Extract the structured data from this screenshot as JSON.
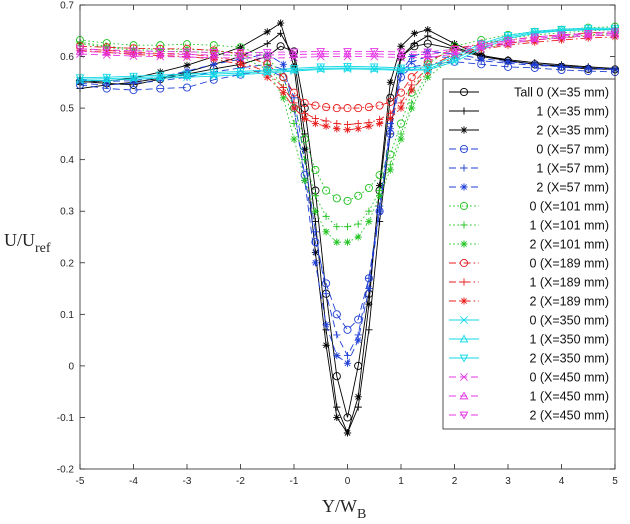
{
  "chart_data": {
    "type": "line",
    "title": "",
    "xlabel": "Y/W",
    "xlabel_sub": "B",
    "ylabel": "U/U",
    "ylabel_sub": "ref",
    "xlim": [
      -5,
      5
    ],
    "ylim": [
      -0.2,
      0.7
    ],
    "xticks": [
      "-5",
      "-4",
      "-3",
      "-2",
      "-1",
      "0",
      "1",
      "2",
      "3",
      "4",
      "5"
    ],
    "yticks": [
      "-0.2",
      "-0.1",
      "0",
      "0.1",
      "0.2",
      "0.3",
      "0.4",
      "0.5",
      "0.6",
      "0.7"
    ],
    "legend_position": "right",
    "series": [
      {
        "name": "Tall 0 (X=35 mm)",
        "color": "#000000",
        "dash": "solid",
        "marker": "circle",
        "x": [
          -5,
          -4.5,
          -4,
          -3.5,
          -3,
          -2.5,
          -2,
          -1.5,
          -1.25,
          -1,
          -0.8,
          -0.6,
          -0.4,
          -0.2,
          0,
          0.2,
          0.4,
          0.6,
          0.8,
          1,
          1.25,
          1.5,
          2,
          2.5,
          3,
          3.5,
          4,
          4.5,
          5
        ],
        "y": [
          0.552,
          0.548,
          0.545,
          0.556,
          0.566,
          0.576,
          0.585,
          0.6,
          0.62,
          0.61,
          0.5,
          0.34,
          0.14,
          -0.02,
          -0.1,
          0.0,
          0.14,
          0.34,
          0.52,
          0.6,
          0.62,
          0.625,
          0.615,
          0.6,
          0.592,
          0.585,
          0.58,
          0.576,
          0.575
        ]
      },
      {
        "name": "1 (X=35 mm)",
        "color": "#000000",
        "dash": "solid",
        "marker": "plus",
        "x": [
          -5,
          -4.5,
          -4,
          -3.5,
          -3,
          -2.5,
          -2,
          -1.5,
          -1.25,
          -1,
          -0.8,
          -0.6,
          -0.4,
          -0.2,
          0,
          0.2,
          0.4,
          0.6,
          0.8,
          1,
          1.25,
          1.5,
          2,
          2.5,
          3,
          3.5,
          4,
          4.5,
          5
        ],
        "y": [
          0.538,
          0.545,
          0.55,
          0.558,
          0.57,
          0.585,
          0.6,
          0.625,
          0.645,
          0.6,
          0.45,
          0.28,
          0.07,
          -0.08,
          -0.13,
          -0.08,
          0.07,
          0.28,
          0.45,
          0.6,
          0.625,
          0.64,
          0.618,
          0.602,
          0.594,
          0.588,
          0.584,
          0.58,
          0.577
        ]
      },
      {
        "name": "2 (X=35 mm)",
        "color": "#000000",
        "dash": "solid",
        "marker": "star",
        "x": [
          -5,
          -4.5,
          -4,
          -3.5,
          -3,
          -2.5,
          -2,
          -1.5,
          -1.25,
          -1,
          -0.8,
          -0.6,
          -0.4,
          -0.2,
          0,
          0.2,
          0.4,
          0.6,
          0.8,
          1,
          1.25,
          1.5,
          2,
          2.5,
          3,
          3.5,
          4,
          4.5,
          5
        ],
        "y": [
          0.55,
          0.553,
          0.558,
          0.57,
          0.583,
          0.6,
          0.618,
          0.648,
          0.665,
          0.58,
          0.42,
          0.22,
          0.04,
          -0.1,
          -0.13,
          -0.06,
          0.12,
          0.35,
          0.55,
          0.62,
          0.645,
          0.652,
          0.625,
          0.603,
          0.592,
          0.585,
          0.582,
          0.578,
          0.575
        ]
      },
      {
        "name": "0 (X=57 mm)",
        "color": "#1f3fd6",
        "dash": "dash",
        "marker": "circle",
        "x": [
          -5,
          -4.5,
          -4,
          -3.5,
          -3,
          -2.5,
          -2,
          -1.5,
          -1.2,
          -1,
          -0.8,
          -0.6,
          -0.4,
          -0.2,
          0,
          0.2,
          0.4,
          0.6,
          0.8,
          1,
          1.2,
          1.5,
          2,
          2.5,
          3,
          3.5,
          4,
          4.5,
          5
        ],
        "y": [
          0.545,
          0.538,
          0.535,
          0.538,
          0.54,
          0.555,
          0.565,
          0.575,
          0.56,
          0.5,
          0.37,
          0.24,
          0.16,
          0.1,
          0.07,
          0.09,
          0.17,
          0.3,
          0.45,
          0.56,
          0.58,
          0.585,
          0.59,
          0.585,
          0.58,
          0.578,
          0.574,
          0.572,
          0.57
        ]
      },
      {
        "name": "1 (X=57 mm)",
        "color": "#1f3fd6",
        "dash": "dash",
        "marker": "plus",
        "x": [
          -5,
          -4.5,
          -4,
          -3.5,
          -3,
          -2.5,
          -2,
          -1.5,
          -1.2,
          -1,
          -0.8,
          -0.6,
          -0.4,
          -0.2,
          0,
          0.2,
          0.4,
          0.6,
          0.8,
          1,
          1.2,
          1.5,
          2,
          2.5,
          3,
          3.5,
          4,
          4.5,
          5
        ],
        "y": [
          0.548,
          0.545,
          0.548,
          0.553,
          0.56,
          0.57,
          0.578,
          0.585,
          0.575,
          0.52,
          0.4,
          0.26,
          0.14,
          0.06,
          0.02,
          0.06,
          0.17,
          0.31,
          0.47,
          0.57,
          0.59,
          0.6,
          0.598,
          0.592,
          0.587,
          0.583,
          0.58,
          0.577,
          0.575
        ]
      },
      {
        "name": "2 (X=57 mm)",
        "color": "#1f3fd6",
        "dash": "dash",
        "marker": "star",
        "x": [
          -5,
          -4.5,
          -4,
          -3.5,
          -3,
          -2.5,
          -2,
          -1.5,
          -1.2,
          -1,
          -0.8,
          -0.6,
          -0.4,
          -0.2,
          0,
          0.2,
          0.4,
          0.6,
          0.8,
          1,
          1.2,
          1.5,
          2,
          2.5,
          3,
          3.5,
          4,
          4.5,
          5
        ],
        "y": [
          0.555,
          0.552,
          0.553,
          0.56,
          0.572,
          0.585,
          0.595,
          0.605,
          0.585,
          0.5,
          0.36,
          0.2,
          0.08,
          0.02,
          0.005,
          0.05,
          0.15,
          0.3,
          0.46,
          0.57,
          0.6,
          0.61,
          0.605,
          0.596,
          0.59,
          0.585,
          0.581,
          0.578,
          0.576
        ]
      },
      {
        "name": "0 (X=101 mm)",
        "color": "#22c322",
        "dash": "dot",
        "marker": "circle",
        "x": [
          -5,
          -4.5,
          -4,
          -3.5,
          -3,
          -2.5,
          -2,
          -1.5,
          -1.2,
          -1,
          -0.8,
          -0.6,
          -0.4,
          -0.2,
          0,
          0.2,
          0.4,
          0.6,
          0.8,
          1,
          1.2,
          1.5,
          2,
          2.5,
          3,
          3.5,
          4,
          4.5,
          5
        ],
        "y": [
          0.632,
          0.626,
          0.622,
          0.622,
          0.624,
          0.622,
          0.618,
          0.6,
          0.56,
          0.5,
          0.44,
          0.38,
          0.34,
          0.325,
          0.32,
          0.33,
          0.345,
          0.37,
          0.41,
          0.47,
          0.53,
          0.585,
          0.62,
          0.632,
          0.642,
          0.648,
          0.652,
          0.656,
          0.658
        ]
      },
      {
        "name": "1 (X=101 mm)",
        "color": "#22c322",
        "dash": "dot",
        "marker": "plus",
        "x": [
          -5,
          -4.5,
          -4,
          -3.5,
          -3,
          -2.5,
          -2,
          -1.5,
          -1.2,
          -1,
          -0.8,
          -0.6,
          -0.4,
          -0.2,
          0,
          0.2,
          0.4,
          0.6,
          0.8,
          1,
          1.2,
          1.5,
          2,
          2.5,
          3,
          3.5,
          4,
          4.5,
          5
        ],
        "y": [
          0.628,
          0.62,
          0.615,
          0.614,
          0.614,
          0.612,
          0.606,
          0.585,
          0.54,
          0.47,
          0.4,
          0.33,
          0.29,
          0.27,
          0.27,
          0.275,
          0.3,
          0.34,
          0.39,
          0.45,
          0.51,
          0.57,
          0.61,
          0.625,
          0.635,
          0.642,
          0.646,
          0.65,
          0.652
        ]
      },
      {
        "name": "2 (X=101 mm)",
        "color": "#22c322",
        "dash": "dot",
        "marker": "star",
        "x": [
          -5,
          -4.5,
          -4,
          -3.5,
          -3,
          -2.5,
          -2,
          -1.5,
          -1.2,
          -1,
          -0.8,
          -0.6,
          -0.4,
          -0.2,
          0,
          0.2,
          0.4,
          0.6,
          0.8,
          1,
          1.2,
          1.5,
          2,
          2.5,
          3,
          3.5,
          4,
          4.5,
          5
        ],
        "y": [
          0.625,
          0.618,
          0.612,
          0.61,
          0.61,
          0.607,
          0.6,
          0.575,
          0.52,
          0.44,
          0.36,
          0.3,
          0.26,
          0.24,
          0.24,
          0.25,
          0.28,
          0.33,
          0.38,
          0.44,
          0.5,
          0.56,
          0.6,
          0.615,
          0.625,
          0.632,
          0.638,
          0.642,
          0.645
        ]
      },
      {
        "name": "0 (X=189 mm)",
        "color": "#e81c1c",
        "dash": "dashdot",
        "marker": "circle",
        "x": [
          -5,
          -4.5,
          -4,
          -3.5,
          -3,
          -2.5,
          -2,
          -1.5,
          -1.2,
          -1,
          -0.8,
          -0.6,
          -0.4,
          -0.2,
          0,
          0.2,
          0.4,
          0.6,
          0.8,
          1,
          1.2,
          1.5,
          2,
          2.5,
          3,
          3.5,
          4,
          4.5,
          5
        ],
        "y": [
          0.62,
          0.618,
          0.616,
          0.615,
          0.615,
          0.612,
          0.605,
          0.585,
          0.56,
          0.53,
          0.51,
          0.505,
          0.502,
          0.5,
          0.5,
          0.5,
          0.502,
          0.505,
          0.512,
          0.53,
          0.56,
          0.59,
          0.615,
          0.625,
          0.632,
          0.638,
          0.642,
          0.646,
          0.648
        ]
      },
      {
        "name": "1 (X=189 mm)",
        "color": "#e81c1c",
        "dash": "dashdot",
        "marker": "plus",
        "x": [
          -5,
          -4.5,
          -4,
          -3.5,
          -3,
          -2.5,
          -2,
          -1.5,
          -1.2,
          -1,
          -0.8,
          -0.6,
          -0.4,
          -0.2,
          0,
          0.2,
          0.4,
          0.6,
          0.8,
          1,
          1.2,
          1.5,
          2,
          2.5,
          3,
          3.5,
          4,
          4.5,
          5
        ],
        "y": [
          0.615,
          0.612,
          0.608,
          0.606,
          0.605,
          0.6,
          0.59,
          0.57,
          0.54,
          0.51,
          0.49,
          0.48,
          0.475,
          0.47,
          0.468,
          0.47,
          0.472,
          0.478,
          0.49,
          0.51,
          0.545,
          0.58,
          0.605,
          0.618,
          0.626,
          0.632,
          0.636,
          0.64,
          0.642
        ]
      },
      {
        "name": "2 (X=189 mm)",
        "color": "#e81c1c",
        "dash": "dashdot",
        "marker": "star",
        "x": [
          -5,
          -4.5,
          -4,
          -3.5,
          -3,
          -2.5,
          -2,
          -1.5,
          -1.2,
          -1,
          -0.8,
          -0.6,
          -0.4,
          -0.2,
          0,
          0.2,
          0.4,
          0.6,
          0.8,
          1,
          1.2,
          1.5,
          2,
          2.5,
          3,
          3.5,
          4,
          4.5,
          5
        ],
        "y": [
          0.612,
          0.608,
          0.604,
          0.602,
          0.6,
          0.595,
          0.585,
          0.56,
          0.53,
          0.5,
          0.48,
          0.47,
          0.465,
          0.46,
          0.458,
          0.46,
          0.465,
          0.47,
          0.48,
          0.5,
          0.535,
          0.57,
          0.6,
          0.614,
          0.622,
          0.628,
          0.632,
          0.636,
          0.638
        ]
      },
      {
        "name": "0 (X=350 mm)",
        "color": "#12d9e6",
        "dash": "solid",
        "marker": "x",
        "x": [
          -5,
          -4.5,
          -4,
          -3.5,
          -3,
          -2.5,
          -2,
          -1.5,
          -1,
          -0.5,
          0,
          0.5,
          1,
          1.5,
          2,
          2.5,
          3,
          3.5,
          4,
          4.5,
          5
        ],
        "y": [
          0.553,
          0.554,
          0.556,
          0.558,
          0.56,
          0.562,
          0.565,
          0.568,
          0.572,
          0.575,
          0.576,
          0.575,
          0.573,
          0.574,
          0.59,
          0.615,
          0.635,
          0.645,
          0.65,
          0.652,
          0.652
        ]
      },
      {
        "name": "1 (X=350 mm)",
        "color": "#12d9e6",
        "dash": "solid",
        "marker": "triangle-up",
        "x": [
          -5,
          -4.5,
          -4,
          -3.5,
          -3,
          -2.5,
          -2,
          -1.5,
          -1,
          -0.5,
          0,
          0.5,
          1,
          1.5,
          2,
          2.5,
          3,
          3.5,
          4,
          4.5,
          5
        ],
        "y": [
          0.556,
          0.557,
          0.559,
          0.561,
          0.563,
          0.566,
          0.568,
          0.571,
          0.574,
          0.577,
          0.578,
          0.577,
          0.575,
          0.576,
          0.595,
          0.62,
          0.638,
          0.647,
          0.651,
          0.653,
          0.653
        ]
      },
      {
        "name": "2 (X=350 mm)",
        "color": "#12d9e6",
        "dash": "solid",
        "marker": "triangle-down",
        "x": [
          -5,
          -4.5,
          -4,
          -3.5,
          -3,
          -2.5,
          -2,
          -1.5,
          -1,
          -0.5,
          0,
          0.5,
          1,
          1.5,
          2,
          2.5,
          3,
          3.5,
          4,
          4.5,
          5
        ],
        "y": [
          0.559,
          0.56,
          0.562,
          0.564,
          0.566,
          0.569,
          0.571,
          0.574,
          0.577,
          0.58,
          0.581,
          0.58,
          0.578,
          0.58,
          0.6,
          0.625,
          0.641,
          0.649,
          0.653,
          0.655,
          0.655
        ]
      },
      {
        "name": "0 (X=450 mm)",
        "color": "#e637e6",
        "dash": "dash",
        "marker": "x",
        "x": [
          -5,
          -4.5,
          -4,
          -3.5,
          -3,
          -2.5,
          -2,
          -1.5,
          -1,
          -0.5,
          0,
          0.5,
          1,
          1.5,
          2,
          2.5,
          3,
          3.5,
          4,
          4.5,
          5
        ],
        "y": [
          0.605,
          0.603,
          0.601,
          0.6,
          0.599,
          0.598,
          0.597,
          0.597,
          0.598,
          0.6,
          0.6,
          0.6,
          0.598,
          0.598,
          0.605,
          0.615,
          0.625,
          0.632,
          0.637,
          0.64,
          0.642
        ]
      },
      {
        "name": "1 (X=450 mm)",
        "color": "#e637e6",
        "dash": "dash",
        "marker": "triangle-up",
        "x": [
          -5,
          -4.5,
          -4,
          -3.5,
          -3,
          -2.5,
          -2,
          -1.5,
          -1,
          -0.5,
          0,
          0.5,
          1,
          1.5,
          2,
          2.5,
          3,
          3.5,
          4,
          4.5,
          5
        ],
        "y": [
          0.61,
          0.608,
          0.606,
          0.605,
          0.604,
          0.603,
          0.603,
          0.603,
          0.604,
          0.605,
          0.605,
          0.605,
          0.604,
          0.604,
          0.61,
          0.62,
          0.628,
          0.635,
          0.64,
          0.643,
          0.645
        ]
      },
      {
        "name": "2 (X=450 mm)",
        "color": "#e637e6",
        "dash": "dash",
        "marker": "triangle-down",
        "x": [
          -5,
          -4.5,
          -4,
          -3.5,
          -3,
          -2.5,
          -2,
          -1.5,
          -1,
          -0.5,
          0,
          0.5,
          1,
          1.5,
          2,
          2.5,
          3,
          3.5,
          4,
          4.5,
          5
        ],
        "y": [
          0.615,
          0.613,
          0.611,
          0.61,
          0.609,
          0.608,
          0.608,
          0.608,
          0.609,
          0.61,
          0.61,
          0.61,
          0.609,
          0.609,
          0.614,
          0.623,
          0.631,
          0.638,
          0.642,
          0.645,
          0.648
        ]
      }
    ]
  }
}
